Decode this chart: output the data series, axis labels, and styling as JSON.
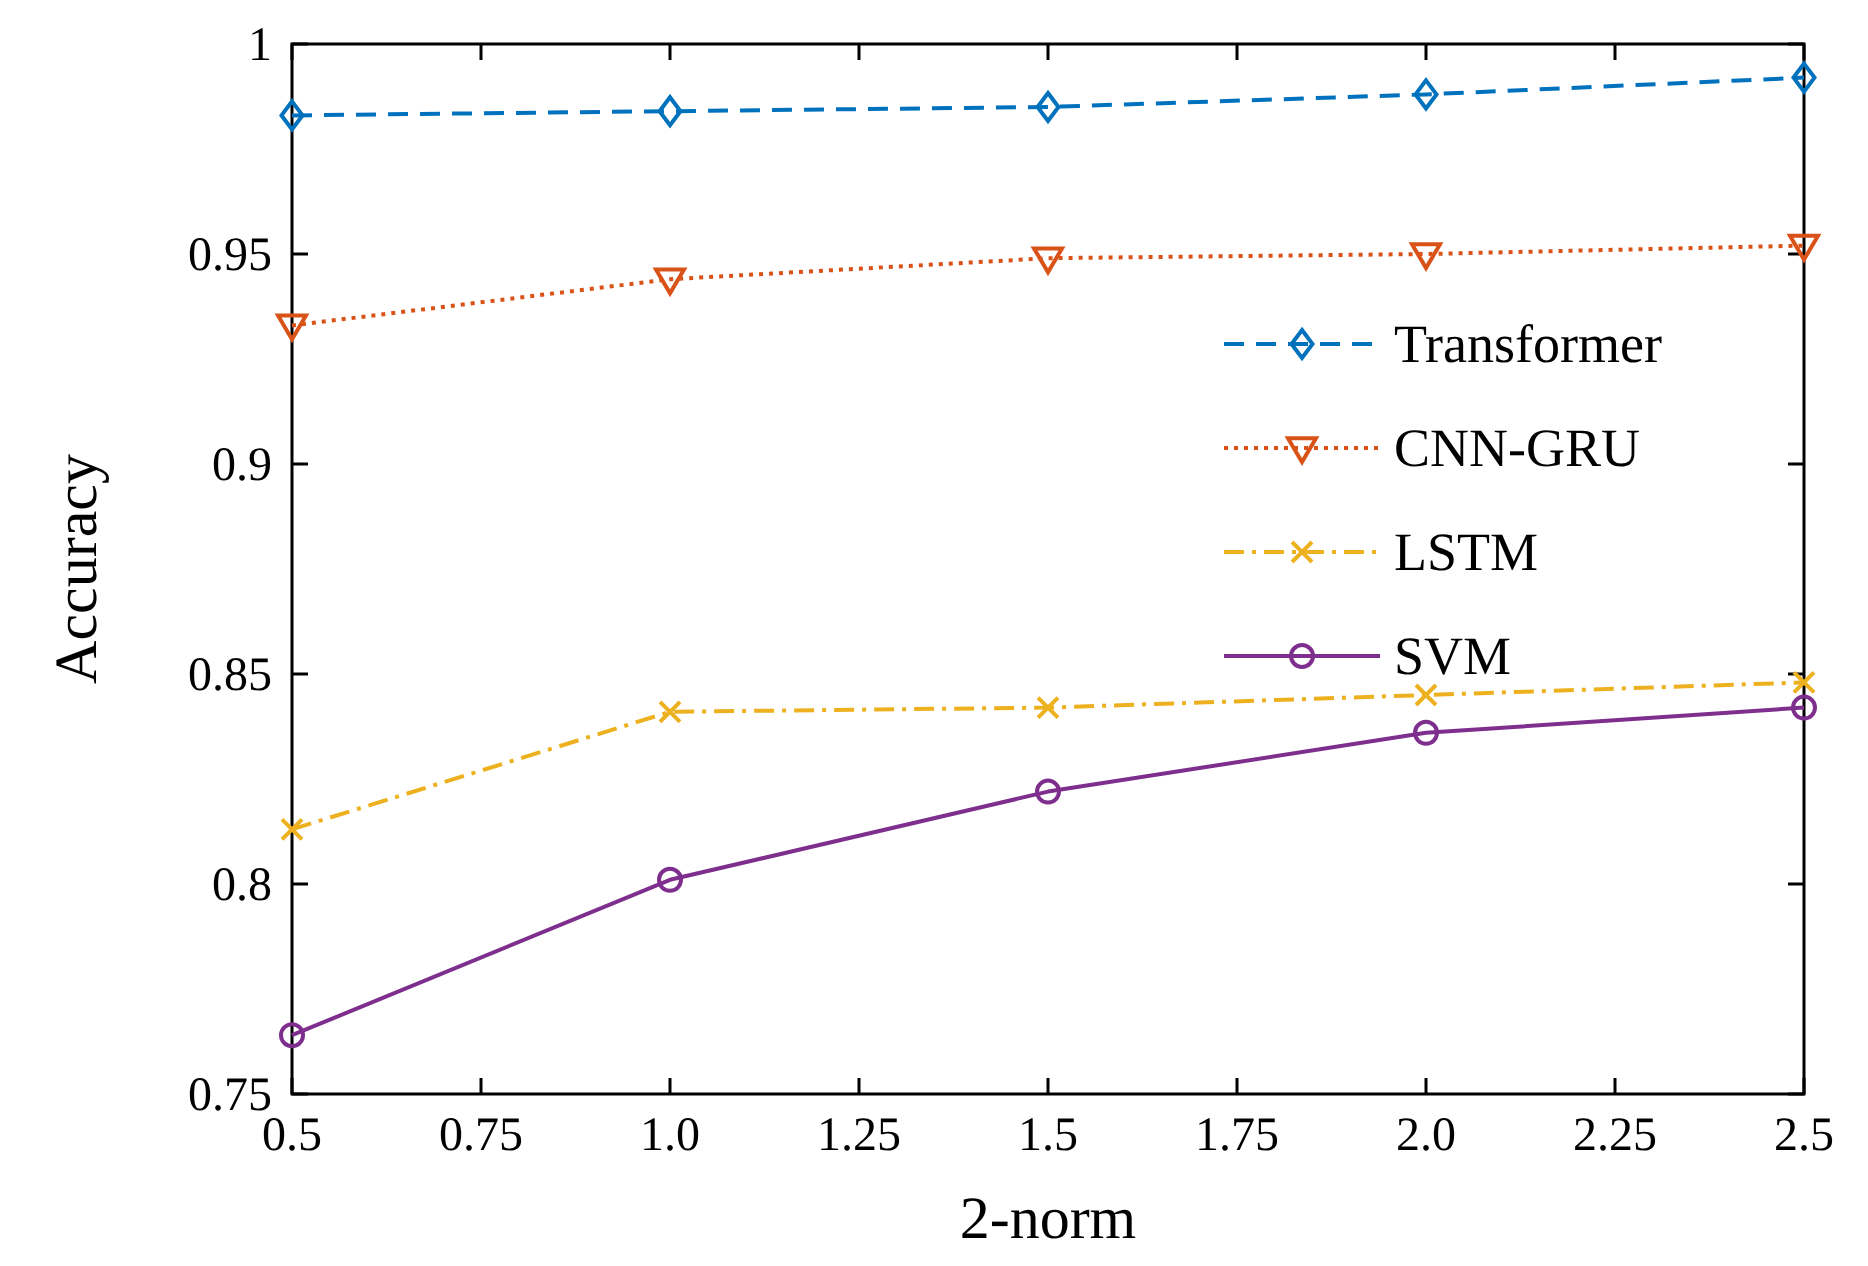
{
  "chart_data": {
    "type": "line",
    "xlabel": "2-norm",
    "ylabel": "Accuracy",
    "x": [
      0.5,
      1.0,
      1.5,
      2.0,
      2.5
    ],
    "series": [
      {
        "name": "Transformer",
        "color": "#0072bd",
        "marker": "diamond",
        "line_style": "dashed",
        "values": [
          0.983,
          0.984,
          0.985,
          0.988,
          0.992
        ]
      },
      {
        "name": "CNN-GRU",
        "color": "#d95319",
        "marker": "triangle",
        "line_style": "dotted",
        "values": [
          0.933,
          0.944,
          0.949,
          0.95,
          0.952
        ]
      },
      {
        "name": "LSTM",
        "color": "#edb120",
        "marker": "cross",
        "line_style": "dashdot",
        "values": [
          0.813,
          0.841,
          0.842,
          0.845,
          0.848
        ]
      },
      {
        "name": "SVM",
        "color": "#7e2f8e",
        "marker": "circle",
        "line_style": "solid",
        "values": [
          0.764,
          0.801,
          0.822,
          0.836,
          0.842
        ]
      }
    ],
    "xlim": [
      0.5,
      2.5
    ],
    "xticks": [
      0.5,
      0.75,
      {
        "value": 1,
        "label": "1.0"
      },
      1.25,
      1.5,
      1.75,
      {
        "value": 2,
        "label": "2.0"
      },
      2.25,
      2.5
    ],
    "ylim": [
      0.75,
      1
    ],
    "yticks": [
      0.75,
      0.8,
      0.85,
      0.9,
      0.95,
      1
    ],
    "grid": false,
    "legend": "right"
  }
}
